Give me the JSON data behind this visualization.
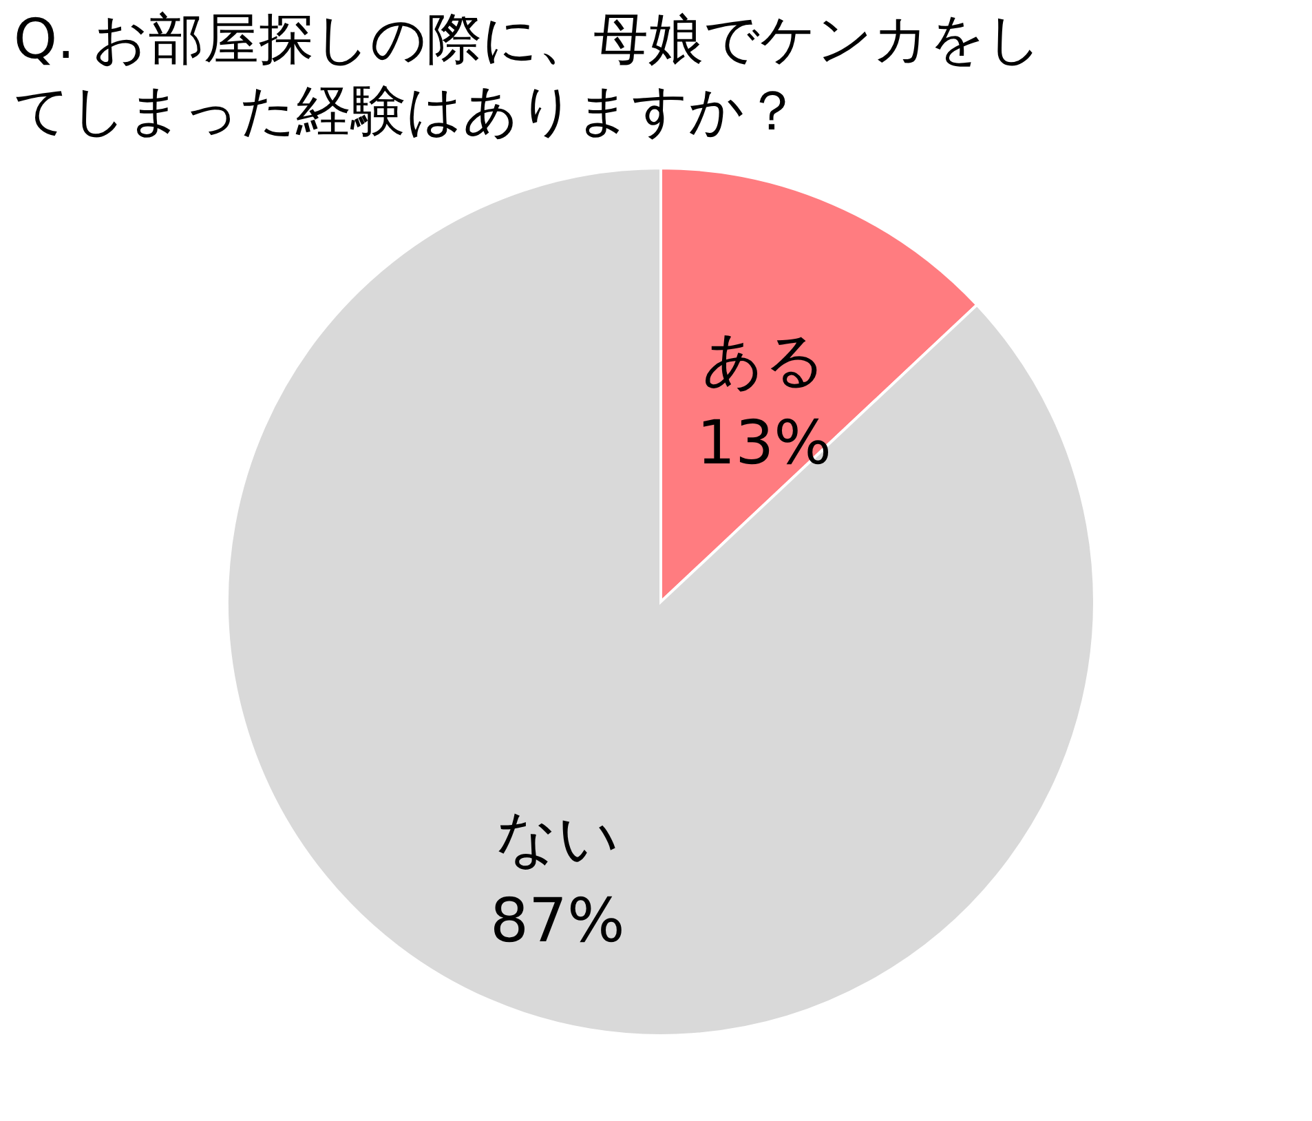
{
  "chart_data": {
    "type": "pie",
    "title": "Q. お部屋探しの際に、母娘でケンカをしてしまった経験はありますか？",
    "categories": [
      "ある",
      "ない"
    ],
    "values": [
      13,
      87
    ],
    "colors": [
      "#ff7c80",
      "#d9d9d9"
    ],
    "value_labels": [
      "13%",
      "87%"
    ]
  }
}
